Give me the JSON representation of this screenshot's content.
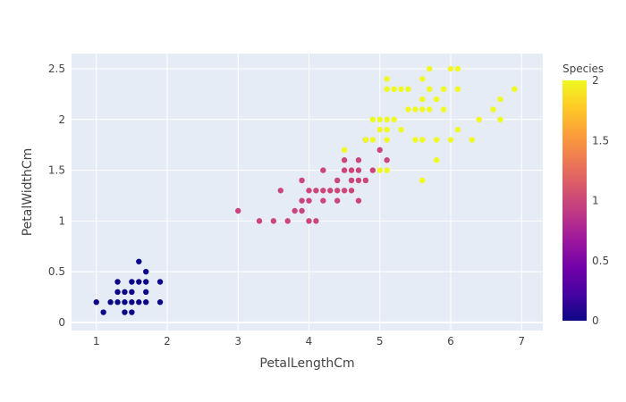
{
  "chart_data": {
    "type": "scatter",
    "xlabel": "PetalLengthCm",
    "ylabel": "PetalWidthCm",
    "xlim": [
      0.65,
      7.3
    ],
    "ylim": [
      -0.08,
      2.65
    ],
    "xticks": [
      1,
      2,
      3,
      4,
      5,
      6,
      7
    ],
    "yticks": [
      0,
      0.5,
      1,
      1.5,
      2,
      2.5
    ],
    "ytick_labels": [
      "0",
      "0.5",
      "1",
      "1.5",
      "2",
      "2.5"
    ],
    "grid": true,
    "plot_bg": "#e5ecf6",
    "colorbar": {
      "title": "Species",
      "range": [
        0,
        2
      ],
      "ticks": [
        0,
        0.5,
        1,
        1.5,
        2
      ],
      "tick_labels": [
        "0",
        "0.5",
        "1",
        "1.5",
        "2"
      ],
      "colorscale": [
        "#0d0887",
        "#46039f",
        "#7201a8",
        "#9c179e",
        "#bd3786",
        "#d8576b",
        "#ed7953",
        "#fb9f3a",
        "#fdca26",
        "#f0f921"
      ]
    },
    "series": [
      {
        "species": 0,
        "points": [
          [
            1.0,
            0.2
          ],
          [
            1.1,
            0.1
          ],
          [
            1.2,
            0.2
          ],
          [
            1.3,
            0.2
          ],
          [
            1.3,
            0.3
          ],
          [
            1.3,
            0.4
          ],
          [
            1.4,
            0.1
          ],
          [
            1.4,
            0.2
          ],
          [
            1.4,
            0.3
          ],
          [
            1.5,
            0.1
          ],
          [
            1.5,
            0.2
          ],
          [
            1.5,
            0.3
          ],
          [
            1.5,
            0.4
          ],
          [
            1.6,
            0.2
          ],
          [
            1.6,
            0.4
          ],
          [
            1.6,
            0.6
          ],
          [
            1.7,
            0.2
          ],
          [
            1.7,
            0.3
          ],
          [
            1.7,
            0.4
          ],
          [
            1.7,
            0.5
          ],
          [
            1.9,
            0.2
          ],
          [
            1.9,
            0.4
          ]
        ]
      },
      {
        "species": 1,
        "points": [
          [
            3.0,
            1.1
          ],
          [
            3.3,
            1.0
          ],
          [
            3.5,
            1.0
          ],
          [
            3.6,
            1.3
          ],
          [
            3.7,
            1.0
          ],
          [
            3.8,
            1.1
          ],
          [
            3.9,
            1.1
          ],
          [
            3.9,
            1.2
          ],
          [
            3.9,
            1.4
          ],
          [
            4.0,
            1.0
          ],
          [
            4.0,
            1.2
          ],
          [
            4.0,
            1.3
          ],
          [
            4.1,
            1.0
          ],
          [
            4.1,
            1.3
          ],
          [
            4.2,
            1.2
          ],
          [
            4.2,
            1.3
          ],
          [
            4.2,
            1.5
          ],
          [
            4.3,
            1.3
          ],
          [
            4.4,
            1.2
          ],
          [
            4.4,
            1.3
          ],
          [
            4.4,
            1.4
          ],
          [
            4.5,
            1.3
          ],
          [
            4.5,
            1.5
          ],
          [
            4.5,
            1.6
          ],
          [
            4.6,
            1.3
          ],
          [
            4.6,
            1.4
          ],
          [
            4.6,
            1.5
          ],
          [
            4.7,
            1.2
          ],
          [
            4.7,
            1.4
          ],
          [
            4.7,
            1.5
          ],
          [
            4.7,
            1.6
          ],
          [
            4.8,
            1.4
          ],
          [
            4.8,
            1.8
          ],
          [
            4.9,
            1.5
          ],
          [
            5.0,
            1.7
          ],
          [
            5.1,
            1.6
          ]
        ]
      },
      {
        "species": 2,
        "points": [
          [
            4.5,
            1.7
          ],
          [
            4.8,
            1.8
          ],
          [
            4.9,
            1.8
          ],
          [
            4.9,
            2.0
          ],
          [
            5.0,
            1.5
          ],
          [
            5.0,
            1.9
          ],
          [
            5.0,
            2.0
          ],
          [
            5.1,
            1.5
          ],
          [
            5.1,
            1.8
          ],
          [
            5.1,
            1.9
          ],
          [
            5.1,
            2.0
          ],
          [
            5.1,
            2.3
          ],
          [
            5.1,
            2.4
          ],
          [
            5.2,
            2.0
          ],
          [
            5.2,
            2.3
          ],
          [
            5.3,
            1.9
          ],
          [
            5.3,
            2.3
          ],
          [
            5.4,
            2.1
          ],
          [
            5.4,
            2.3
          ],
          [
            5.5,
            1.8
          ],
          [
            5.5,
            2.1
          ],
          [
            5.6,
            1.4
          ],
          [
            5.6,
            1.8
          ],
          [
            5.6,
            2.1
          ],
          [
            5.6,
            2.2
          ],
          [
            5.6,
            2.4
          ],
          [
            5.7,
            2.1
          ],
          [
            5.7,
            2.3
          ],
          [
            5.7,
            2.5
          ],
          [
            5.8,
            1.6
          ],
          [
            5.8,
            1.8
          ],
          [
            5.8,
            2.2
          ],
          [
            5.9,
            2.1
          ],
          [
            5.9,
            2.3
          ],
          [
            6.0,
            1.8
          ],
          [
            6.0,
            2.5
          ],
          [
            6.1,
            1.9
          ],
          [
            6.1,
            2.3
          ],
          [
            6.1,
            2.5
          ],
          [
            6.3,
            1.8
          ],
          [
            6.4,
            2.0
          ],
          [
            6.6,
            2.1
          ],
          [
            6.7,
            2.0
          ],
          [
            6.7,
            2.2
          ],
          [
            6.9,
            2.3
          ]
        ]
      }
    ]
  }
}
